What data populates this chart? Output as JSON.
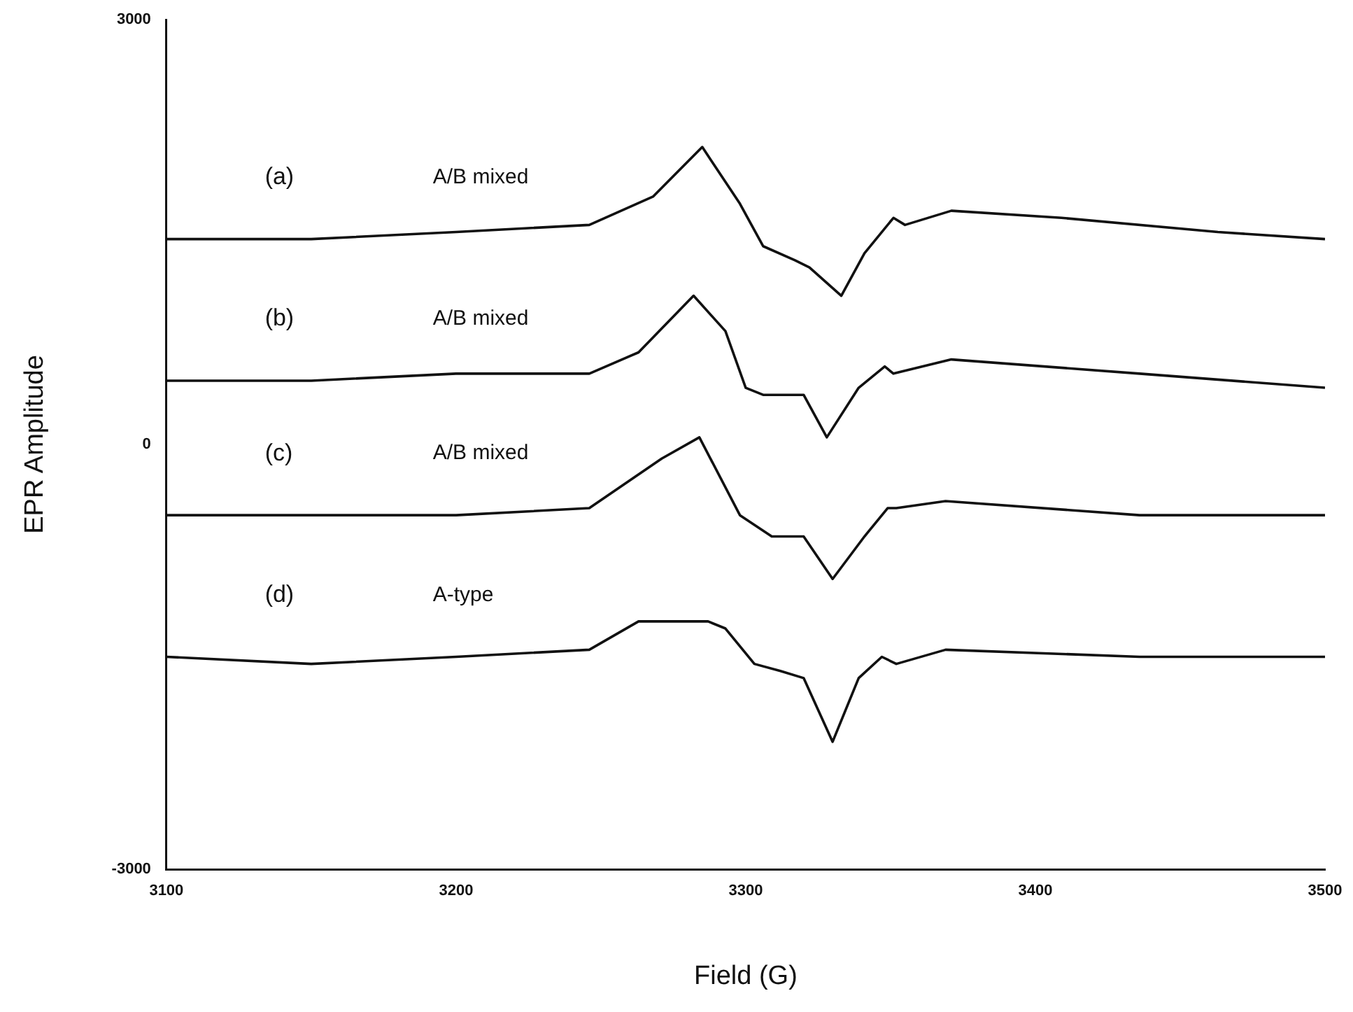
{
  "chart_data": {
    "type": "line",
    "xlabel": "Field (G)",
    "ylabel": "EPR Amplitude",
    "xlim": [
      3100,
      3500
    ],
    "xticks": [
      3100,
      3200,
      3300,
      3400,
      3500
    ],
    "ylim": [
      -3000,
      3000
    ],
    "yticks": [
      -3000,
      0,
      3000
    ],
    "grid": false,
    "legend": false,
    "marker": "none",
    "series": [
      {
        "color": "#111111",
        "x": [
          3100,
          3150,
          3200,
          3246,
          3268,
          3285,
          3298,
          3306,
          3317,
          3322,
          3333,
          3341,
          3351,
          3355,
          3371,
          3409,
          3463,
          3500
        ],
        "values": [
          1450,
          1450,
          1500,
          1550,
          1750,
          2100,
          1700,
          1400,
          1300,
          1250,
          1050,
          1350,
          1600,
          1550,
          1650,
          1600,
          1500,
          1450
        ]
      },
      {
        "color": "#111111",
        "x": [
          3100,
          3150,
          3200,
          3246,
          3263,
          3282,
          3293,
          3300,
          3306,
          3320,
          3328,
          3339,
          3348,
          3351,
          3371,
          3436,
          3500
        ],
        "values": [
          450,
          450,
          500,
          500,
          650,
          1050,
          800,
          400,
          350,
          350,
          50,
          400,
          550,
          500,
          600,
          500,
          400
        ]
      },
      {
        "color": "#111111",
        "x": [
          3100,
          3150,
          3200,
          3246,
          3271,
          3284,
          3298,
          3309,
          3320,
          3330,
          3341,
          3349,
          3352,
          3369,
          3436,
          3500
        ],
        "values": [
          -500,
          -500,
          -500,
          -450,
          -100,
          50,
          -500,
          -650,
          -650,
          -950,
          -650,
          -450,
          -450,
          -400,
          -500,
          -500
        ]
      },
      {
        "color": "#111111",
        "x": [
          3100,
          3150,
          3200,
          3246,
          3263,
          3278,
          3287,
          3293,
          3303,
          3312,
          3320,
          3330,
          3339,
          3347,
          3352,
          3369,
          3436,
          3500
        ],
        "values": [
          -1500,
          -1550,
          -1500,
          -1450,
          -1250,
          -1250,
          -1250,
          -1300,
          -1550,
          -1600,
          -1650,
          -2100,
          -1650,
          -1500,
          -1550,
          -1450,
          -1500,
          -1500
        ]
      }
    ],
    "annotations": [
      "(a)",
      "A/B mixed",
      "(b)",
      "A/B mixed",
      "(c)",
      "A/B mixed",
      "(d)",
      "A-type"
    ]
  }
}
